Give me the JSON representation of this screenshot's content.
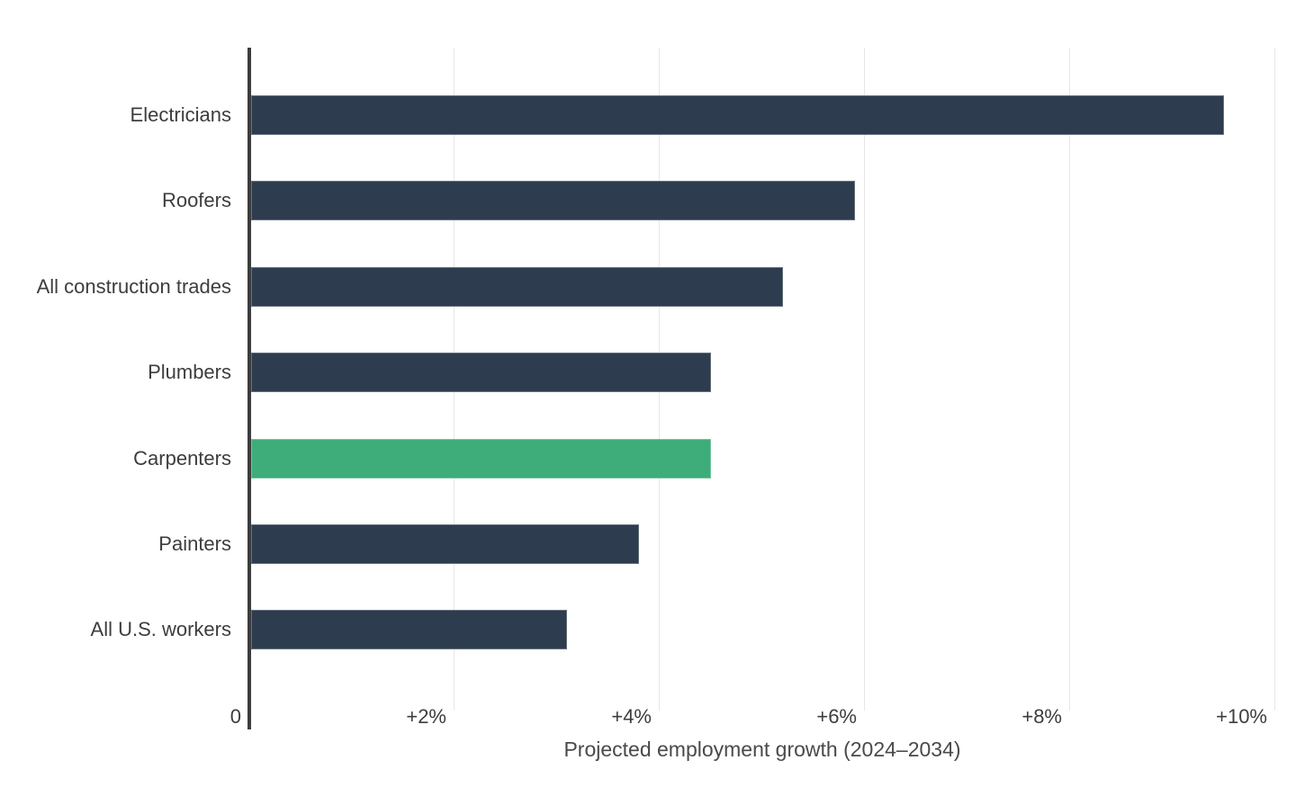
{
  "chart_data": {
    "type": "bar",
    "orientation": "horizontal",
    "xlabel": "Projected employment growth (2024–2034)",
    "categories": [
      "Electricians",
      "Roofers",
      "All construction trades",
      "Plumbers",
      "Carpenters",
      "Painters",
      "All U.S. workers"
    ],
    "values": [
      9.5,
      5.9,
      5.2,
      4.5,
      4.5,
      3.8,
      3.1
    ],
    "value_unit": "%",
    "highlight_category": "Carpenters",
    "xlim": [
      0,
      10
    ],
    "x_ticks": [
      {
        "value": 0,
        "label": "0"
      },
      {
        "value": 2,
        "label": "+2%"
      },
      {
        "value": 4,
        "label": "+4%"
      },
      {
        "value": 6,
        "label": "+6%"
      },
      {
        "value": 8,
        "label": "+8%"
      },
      {
        "value": 10,
        "label": "+10%"
      }
    ],
    "grid": true,
    "legend": false,
    "colors": {
      "bar": "#2d3c4e",
      "highlight": "#3ead7a",
      "gridline": "#e7e7e7",
      "zero_axis": "#3d3d3d",
      "label_text": "#3d3d3d",
      "axis_title_text": "#4a4a4a",
      "background": "#ffffff"
    }
  }
}
